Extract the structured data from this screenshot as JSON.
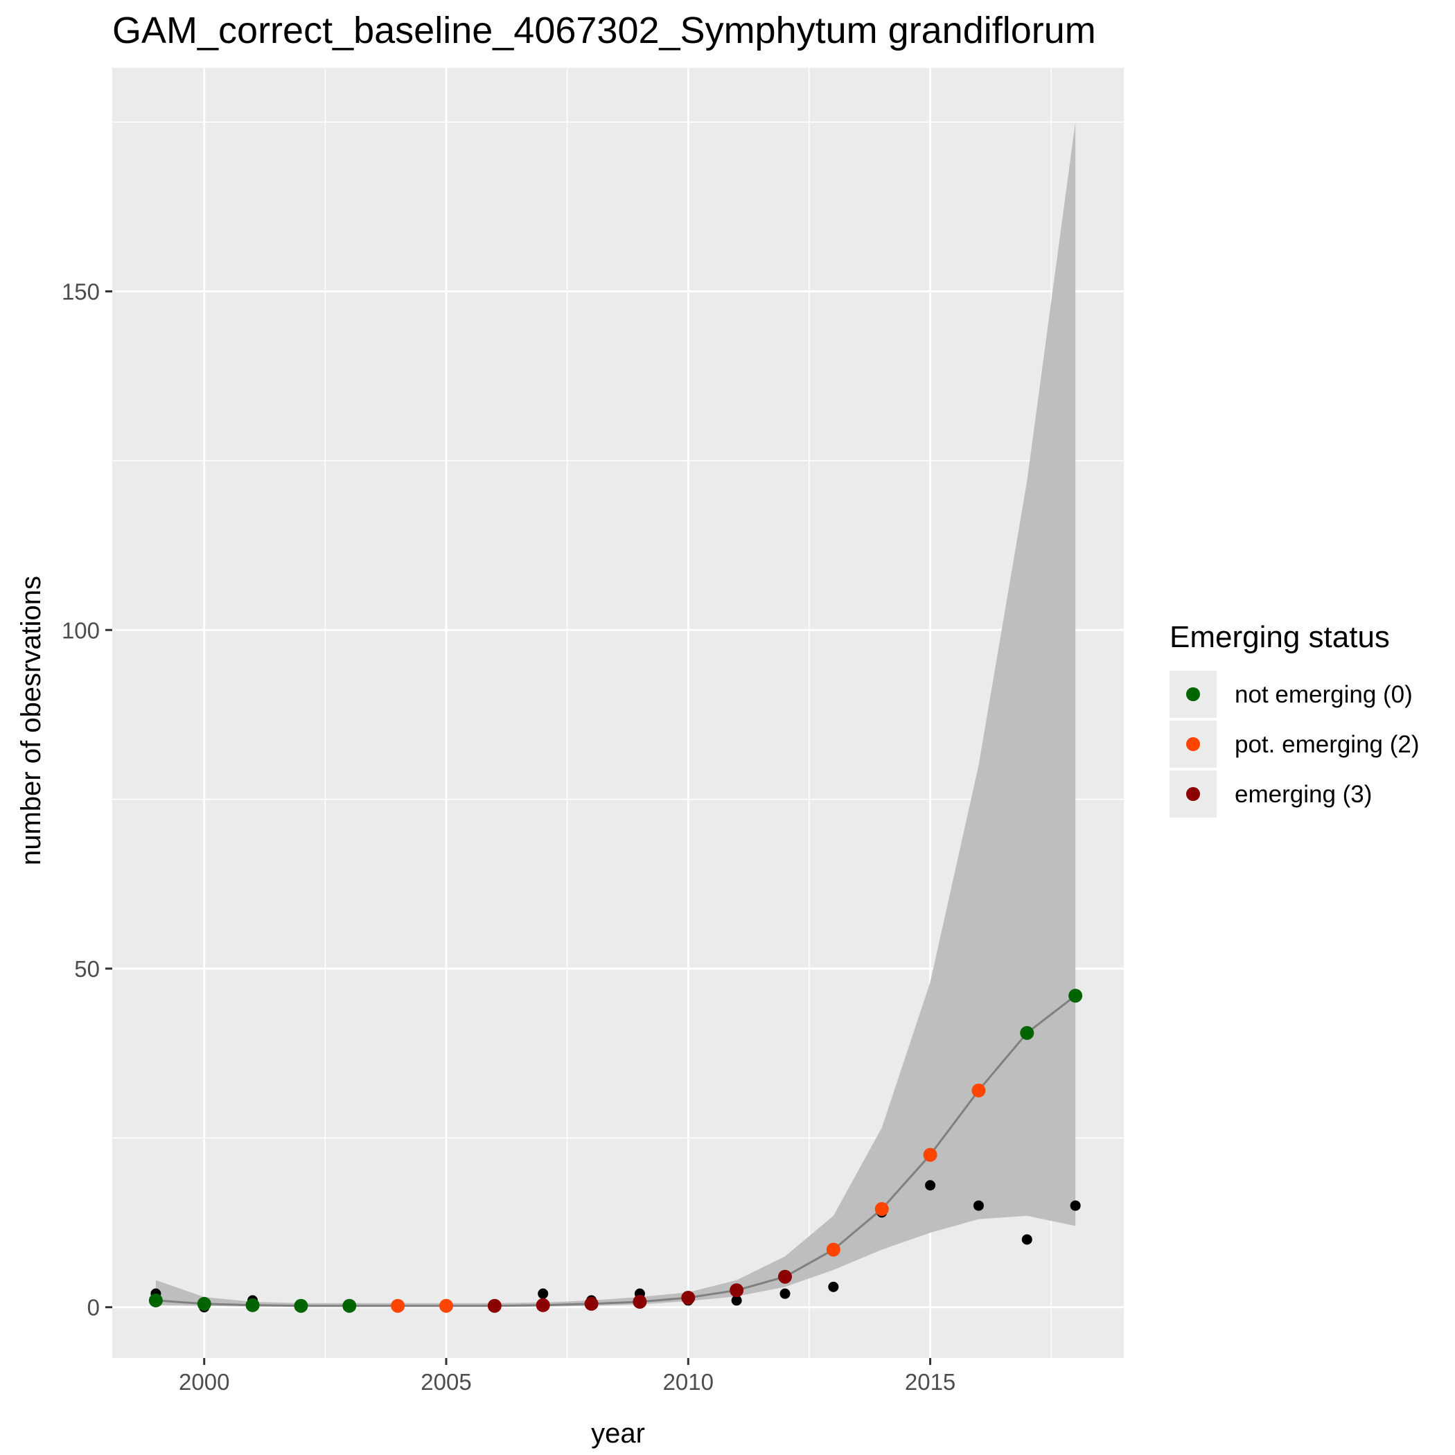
{
  "chart_data": {
    "type": "scatter",
    "title": "GAM_correct_baseline_4067302_Symphytum grandiflorum",
    "xlabel": "year",
    "ylabel": "number of obesrvations",
    "xlim": [
      1998.1,
      2019.0
    ],
    "ylim": [
      -7.5,
      183
    ],
    "x_ticks": [
      2000,
      2005,
      2010,
      2015
    ],
    "y_ticks": [
      0,
      50,
      100,
      150
    ],
    "x_tick_labels": [
      "2000",
      "2005",
      "2010",
      "2015"
    ],
    "y_tick_labels": [
      "0",
      "50",
      "100",
      "150"
    ],
    "grid": true,
    "legend": {
      "title": "Emerging status",
      "position": "right",
      "entries": [
        {
          "label": "not emerging (0)",
          "color": "#006400"
        },
        {
          "label": "pot. emerging (2)",
          "color": "#FF4500"
        },
        {
          "label": "emerging (3)",
          "color": "#8B0000"
        }
      ]
    },
    "observed": {
      "x": [
        1999,
        2000,
        2001,
        2002,
        2003,
        2004,
        2005,
        2006,
        2007,
        2008,
        2009,
        2010,
        2011,
        2012,
        2013,
        2014,
        2015,
        2016,
        2017,
        2018
      ],
      "y": [
        2,
        0,
        1,
        0,
        0,
        0,
        0,
        0,
        2,
        1,
        2,
        1,
        1,
        2,
        3,
        14,
        18,
        15,
        10,
        15
      ]
    },
    "fitted": {
      "x": [
        1999,
        2000,
        2001,
        2002,
        2003,
        2004,
        2005,
        2006,
        2007,
        2008,
        2009,
        2010,
        2011,
        2012,
        2013,
        2014,
        2015,
        2016,
        2017,
        2018
      ],
      "y": [
        1.0,
        0.5,
        0.3,
        0.2,
        0.2,
        0.2,
        0.2,
        0.2,
        0.3,
        0.5,
        0.8,
        1.4,
        2.5,
        4.5,
        8.5,
        14.5,
        22.5,
        32.0,
        40.5,
        46.0
      ],
      "lower": [
        0.3,
        0.2,
        0.1,
        0.1,
        0.1,
        0.1,
        0.1,
        0.1,
        0.1,
        0.2,
        0.4,
        0.9,
        1.6,
        3.0,
        5.5,
        8.5,
        11.0,
        13.0,
        13.5,
        12.0
      ],
      "upper": [
        4.0,
        1.5,
        0.8,
        0.6,
        0.6,
        0.6,
        0.6,
        0.6,
        0.7,
        1.0,
        1.5,
        2.2,
        4.0,
        7.5,
        13.5,
        26.5,
        48.0,
        80.0,
        122.0,
        175.0
      ],
      "status": [
        0,
        0,
        0,
        0,
        0,
        2,
        2,
        3,
        3,
        3,
        3,
        3,
        3,
        3,
        2,
        2,
        2,
        2,
        0,
        0
      ]
    },
    "colors": {
      "panel": "#EBEBEB",
      "grid": "#FFFFFF",
      "ribbon": "#BEBEBE",
      "line": "#808080",
      "observed": "#000000",
      "status_0": "#006400",
      "status_2": "#FF4500",
      "status_3": "#8B0000"
    }
  }
}
